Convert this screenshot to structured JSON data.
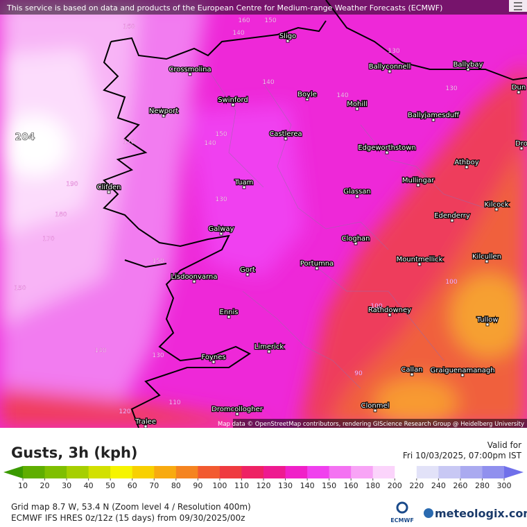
{
  "notice": "This service is based on data and products of the European Centre for Medium-range Weather Forecasts (ECMWF)",
  "map": {
    "places": [
      "Sligo",
      "Crossmolina",
      "Ballyconnell",
      "Ballybay",
      "Dun",
      "Boyle",
      "Swinford",
      "Mohill",
      "Newport",
      "Ballyjamesduff",
      "Castlerea",
      "Dro",
      "Edgeworthstown",
      "Athboy",
      "Tuam",
      "Mullingar",
      "Glassan",
      "Clifden",
      "Kilcock",
      "Edenderry",
      "Galway",
      "Cloghan",
      "Portumna",
      "Mountmellick",
      "Kilcullen",
      "Lisdoonvarna",
      "Gort",
      "Rathdowney",
      "Ennis",
      "Tullow",
      "Limerick",
      "Foynes",
      "Callan",
      "Graiguenamanagh",
      "Clonmel",
      "Dromcollogher",
      "Tralee"
    ],
    "contour_labels": [
      160,
      140,
      160,
      150,
      130,
      140,
      130,
      140,
      170,
      140,
      150,
      190,
      180,
      130,
      170,
      150,
      150,
      100,
      100,
      140,
      130,
      90,
      110,
      120
    ],
    "max_label": "204",
    "attribution": "Map data © OpenStreetMap contributors, rendering GIScience Research Group @ Heidelberg University"
  },
  "legend": {
    "title": "Gusts, 3h (kph)",
    "valid_label": "Valid for",
    "valid_time": "Fri 10/03/2025, 07:00pm IST",
    "below_color": "#3a9a00",
    "stops": [
      {
        "value": 10,
        "color": "#4ea400"
      },
      {
        "value": 20,
        "color": "#5fae00"
      },
      {
        "value": 30,
        "color": "#7fbf00"
      },
      {
        "value": 40,
        "color": "#a6cf00"
      },
      {
        "value": 50,
        "color": "#d2e000"
      },
      {
        "value": 60,
        "color": "#f6f400"
      },
      {
        "value": 70,
        "color": "#f8d000"
      },
      {
        "value": 80,
        "color": "#f8aa10"
      },
      {
        "value": 90,
        "color": "#f58420"
      },
      {
        "value": 100,
        "color": "#f25a30"
      },
      {
        "value": 110,
        "color": "#ef3a40"
      },
      {
        "value": 120,
        "color": "#ee2264"
      },
      {
        "value": 130,
        "color": "#ee1a90"
      },
      {
        "value": 140,
        "color": "#f020c8"
      },
      {
        "value": 150,
        "color": "#f040ee"
      },
      {
        "value": 160,
        "color": "#f472f2"
      },
      {
        "value": 180,
        "color": "#f8a4f6"
      },
      {
        "value": 200,
        "color": "#fbd4fb"
      },
      {
        "value": 220,
        "color": "#ffffff"
      },
      {
        "value": 240,
        "color": "#e2e2f8"
      },
      {
        "value": 260,
        "color": "#c8c8f4"
      },
      {
        "value": 280,
        "color": "#aaaaf0"
      },
      {
        "value": 300,
        "color": "#9090ee"
      }
    ],
    "above_color": "#7070ea"
  },
  "footer": {
    "grid": "Grid map 8.7 W, 53.4 N (Zoom level 4 / Resolution 400m)",
    "model": "ECMWF IFS HRES 0z/12z (15 days) from 09/30/2025/00z",
    "brand_ecmwf": "ECMWF",
    "brand": "meteologix.com"
  }
}
